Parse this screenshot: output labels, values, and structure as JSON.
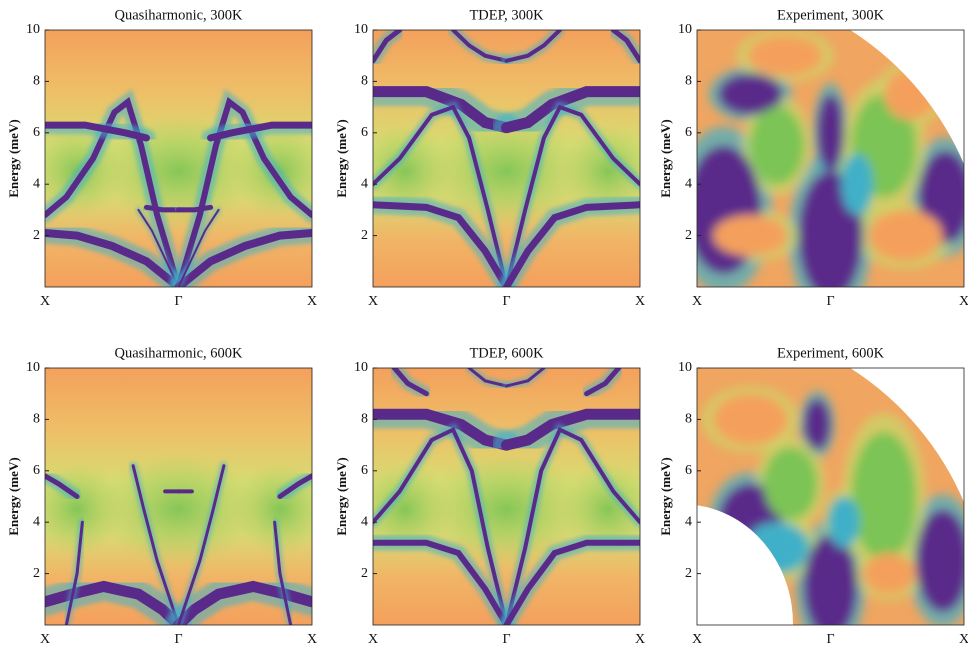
{
  "chart_data": [
    {
      "type": "heatmap",
      "kind": "simulation",
      "title": "Quasiharmonic, 300K",
      "ylabel": "Energy (meV)",
      "categories": [
        "X",
        "Γ",
        "X"
      ],
      "ylim": [
        0,
        10
      ],
      "yticks": [
        2,
        4,
        6,
        8,
        10
      ]
    },
    {
      "type": "heatmap",
      "kind": "simulation",
      "title": "TDEP, 300K",
      "ylabel": "Energy (meV)",
      "categories": [
        "X",
        "Γ",
        "X"
      ],
      "ylim": [
        0,
        10
      ],
      "yticks": [
        2,
        4,
        6,
        8,
        10
      ]
    },
    {
      "type": "heatmap",
      "kind": "experiment",
      "title": "Experiment, 300K",
      "ylabel": "Energy (meV)",
      "categories": [
        "X",
        "Γ",
        "X"
      ],
      "ylim": [
        0,
        10
      ],
      "yticks": [
        2,
        4,
        6,
        8,
        10
      ]
    },
    {
      "type": "heatmap",
      "kind": "simulation",
      "title": "Quasiharmonic, 600K",
      "ylabel": "Energy (meV)",
      "categories": [
        "X",
        "Γ",
        "X"
      ],
      "ylim": [
        0,
        10
      ],
      "yticks": [
        2,
        4,
        6,
        8,
        10
      ]
    },
    {
      "type": "heatmap",
      "kind": "simulation",
      "title": "TDEP, 600K",
      "ylabel": "Energy (meV)",
      "categories": [
        "X",
        "Γ",
        "X"
      ],
      "ylim": [
        0,
        10
      ],
      "yticks": [
        2,
        4,
        6,
        8,
        10
      ]
    },
    {
      "type": "heatmap",
      "kind": "experiment",
      "title": "Experiment, 600K",
      "ylabel": "Energy (meV)",
      "categories": [
        "X",
        "Γ",
        "X"
      ],
      "ylim": [
        0,
        10
      ],
      "yticks": [
        2,
        4,
        6,
        8,
        10
      ]
    }
  ]
}
